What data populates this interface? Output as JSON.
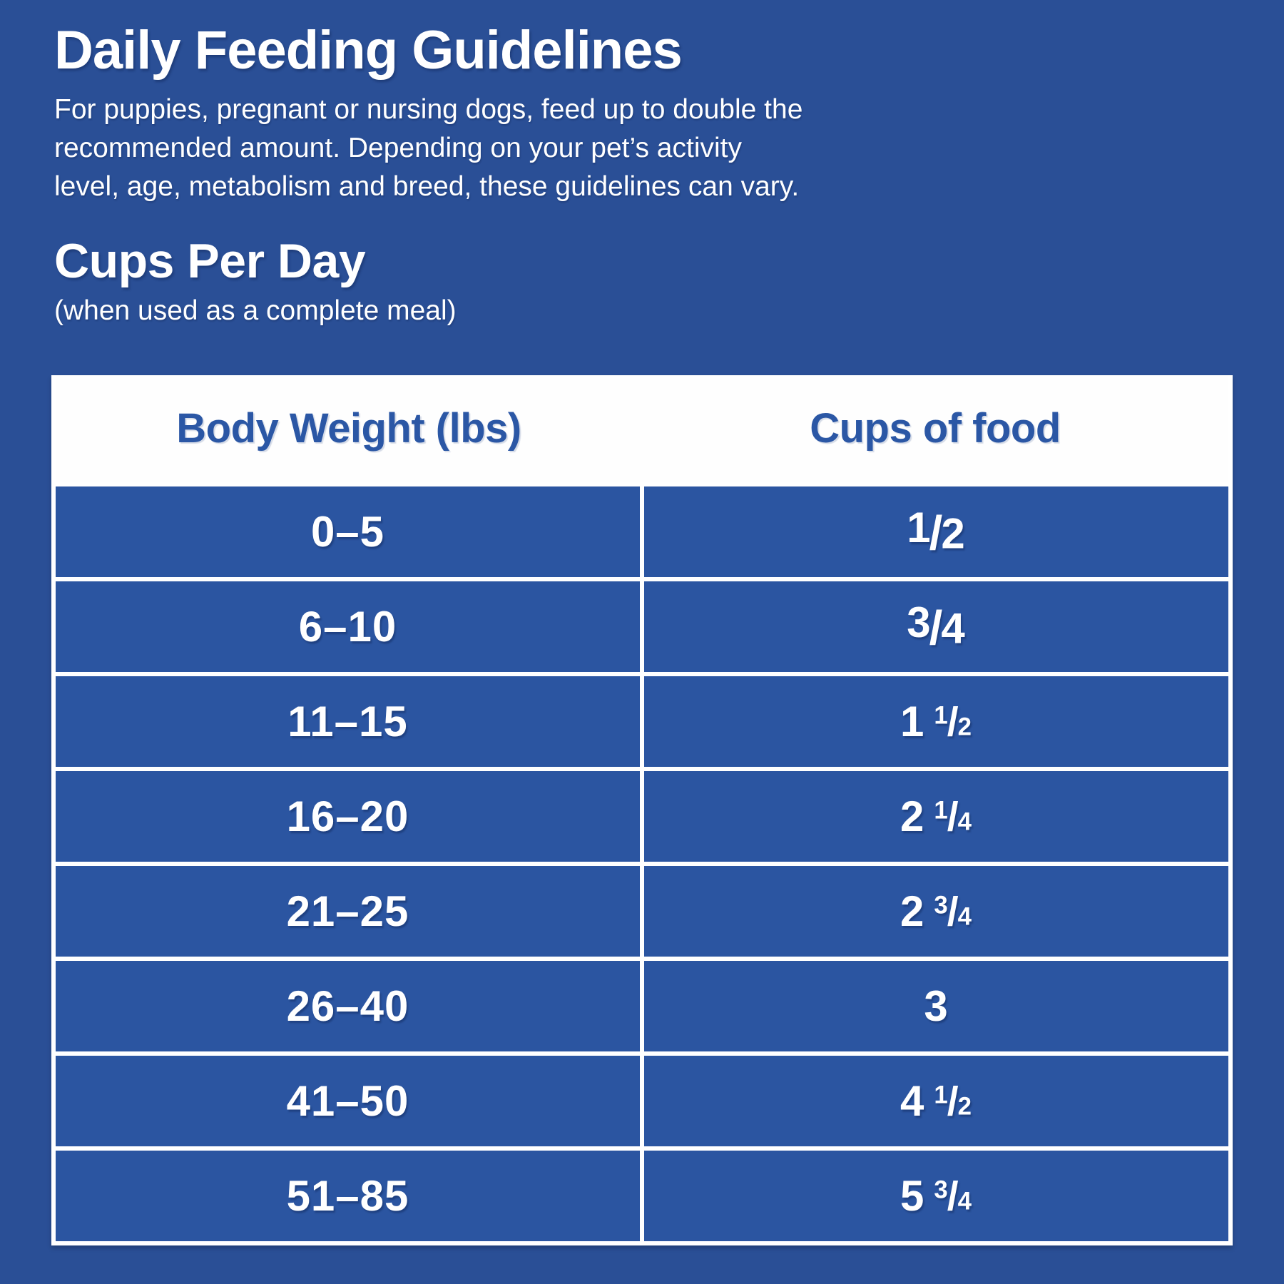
{
  "colors": {
    "background_blue": "#2A4F96",
    "row_blue": "#2B55A1",
    "header_row_white": "#FEFEFE",
    "header_text_blue": "#2B57A5",
    "text_white": "#FFFFFF",
    "divider_white": "#FFFFFF"
  },
  "header": {
    "title": "Daily Feeding Guidelines",
    "paragraph_lines": [
      "For puppies, pregnant or nursing dogs, feed up to double the",
      "recommended amount. Depending on your pet’s activity",
      "level, age, metabolism and breed, these guidelines can vary."
    ]
  },
  "section": {
    "title": "Cups Per Day",
    "subtitle": "(when used as a complete meal)"
  },
  "table": {
    "columns": [
      "Body Weight (lbs)",
      "Cups of food"
    ],
    "rows": [
      {
        "weight": "0–5",
        "cups": {
          "whole": "",
          "num": "1",
          "den": "2"
        },
        "cups_display": "1/2"
      },
      {
        "weight": "6–10",
        "cups": {
          "whole": "",
          "num": "3",
          "den": "4"
        },
        "cups_display": "3/4"
      },
      {
        "weight": "11–15",
        "cups": {
          "whole": "1",
          "num": "1",
          "den": "2"
        },
        "cups_display": "1 1/2"
      },
      {
        "weight": "16–20",
        "cups": {
          "whole": "2",
          "num": "1",
          "den": "4"
        },
        "cups_display": "2 1/4"
      },
      {
        "weight": "21–25",
        "cups": {
          "whole": "2",
          "num": "3",
          "den": "4"
        },
        "cups_display": "2 3/4"
      },
      {
        "weight": "26–40",
        "cups": {
          "whole": "3",
          "num": "",
          "den": ""
        },
        "cups_display": "3"
      },
      {
        "weight": "41–50",
        "cups": {
          "whole": "4",
          "num": "1",
          "den": "2"
        },
        "cups_display": "4 1/2"
      },
      {
        "weight": "51–85",
        "cups": {
          "whole": "5",
          "num": "3",
          "den": "4"
        },
        "cups_display": "5 3/4"
      }
    ]
  },
  "chart_data": {
    "type": "table",
    "title": "Daily Feeding Guidelines",
    "subtitle": "Cups Per Day (when used as a complete meal)",
    "columns": [
      "Body Weight (lbs)",
      "Cups of food"
    ],
    "rows": [
      [
        "0–5",
        "1/2"
      ],
      [
        "6–10",
        "3/4"
      ],
      [
        "11–15",
        "1 1/2"
      ],
      [
        "16–20",
        "2 1/4"
      ],
      [
        "21–25",
        "2 3/4"
      ],
      [
        "26–40",
        "3"
      ],
      [
        "41–50",
        "4 1/2"
      ],
      [
        "51–85",
        "5 3/4"
      ]
    ],
    "cups_numeric": [
      0.5,
      0.75,
      1.5,
      2.25,
      2.75,
      3,
      4.5,
      5.75
    ]
  }
}
